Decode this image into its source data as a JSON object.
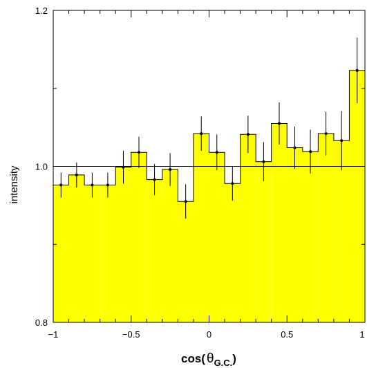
{
  "chart_data": {
    "type": "bar",
    "xlabel_main": "cos(",
    "xlabel_symbol": "θ",
    "xlabel_sub": "G.C.",
    "xlabel_close": ")",
    "ylabel": "intensity",
    "xlim": [
      -1,
      1
    ],
    "ylim": [
      0.8,
      1.2
    ],
    "reference_line": 1.0,
    "x_ticks": [
      {
        "value": -1,
        "label": "−1"
      },
      {
        "value": -0.5,
        "label": "−0.5"
      },
      {
        "value": 0,
        "label": "0"
      },
      {
        "value": 0.5,
        "label": "0.5"
      },
      {
        "value": 1,
        "label": "1"
      }
    ],
    "y_ticks": [
      {
        "value": 0.8,
        "label": "0.8"
      },
      {
        "value": 1.0,
        "label": "1.0"
      },
      {
        "value": 1.2,
        "label": "1.2"
      }
    ],
    "bin_width": 0.1,
    "bins": [
      {
        "x": -0.95,
        "value": 0.976,
        "error": 0.016
      },
      {
        "x": -0.85,
        "value": 0.989,
        "error": 0.016
      },
      {
        "x": -0.75,
        "value": 0.976,
        "error": 0.016
      },
      {
        "x": -0.65,
        "value": 0.976,
        "error": 0.016
      },
      {
        "x": -0.55,
        "value": 0.999,
        "error": 0.021
      },
      {
        "x": -0.45,
        "value": 1.018,
        "error": 0.02
      },
      {
        "x": -0.35,
        "value": 0.983,
        "error": 0.02
      },
      {
        "x": -0.25,
        "value": 0.996,
        "error": 0.021
      },
      {
        "x": -0.15,
        "value": 0.955,
        "error": 0.022
      },
      {
        "x": -0.05,
        "value": 1.042,
        "error": 0.022
      },
      {
        "x": 0.05,
        "value": 1.018,
        "error": 0.023
      },
      {
        "x": 0.15,
        "value": 0.978,
        "error": 0.022
      },
      {
        "x": 0.25,
        "value": 1.041,
        "error": 0.024
      },
      {
        "x": 0.35,
        "value": 1.006,
        "error": 0.025
      },
      {
        "x": 0.45,
        "value": 1.055,
        "error": 0.027
      },
      {
        "x": 0.55,
        "value": 1.024,
        "error": 0.027
      },
      {
        "x": 0.65,
        "value": 1.019,
        "error": 0.028
      },
      {
        "x": 0.75,
        "value": 1.042,
        "error": 0.028
      },
      {
        "x": 0.85,
        "value": 1.033,
        "error": 0.038
      },
      {
        "x": 0.95,
        "value": 1.123,
        "error": 0.042
      }
    ],
    "fill_color": "#ffff00",
    "line_color": "#000000",
    "grid": false,
    "legend": "none"
  }
}
